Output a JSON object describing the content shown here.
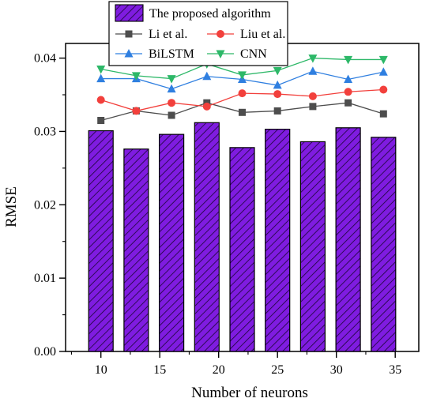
{
  "chart_data": {
    "type": "bar",
    "xlabel": "Number of neurons",
    "ylabel": "RMSE",
    "xlim": [
      7,
      37
    ],
    "ylim": [
      0,
      0.042
    ],
    "x_ticks": [
      10,
      15,
      20,
      25,
      30,
      35
    ],
    "y_ticks": [
      0.0,
      0.01,
      0.02,
      0.03,
      0.04
    ],
    "x_tick_labels": [
      "10",
      "15",
      "20",
      "25",
      "30",
      "35"
    ],
    "y_tick_labels": [
      "0.00",
      "0.01",
      "0.02",
      "0.03",
      "0.04"
    ],
    "x": [
      10,
      13,
      16,
      19,
      22,
      25,
      28,
      31,
      34
    ],
    "legend_position": "top",
    "series": [
      {
        "name": "The proposed algorithm",
        "type": "bar",
        "color": "#7F1CE0",
        "fill": "hatched",
        "values": [
          0.0301,
          0.0276,
          0.0296,
          0.0312,
          0.0278,
          0.0303,
          0.0286,
          0.0305,
          0.0292
        ]
      },
      {
        "name": "Li et al.",
        "type": "line",
        "marker": "square",
        "color": "#4D4D4D",
        "values": [
          0.0315,
          0.0328,
          0.0322,
          0.0339,
          0.0326,
          0.0328,
          0.0334,
          0.0339,
          0.0324
        ]
      },
      {
        "name": "Liu et al.",
        "type": "line",
        "marker": "circle",
        "color": "#F2403C",
        "values": [
          0.0343,
          0.0328,
          0.0339,
          0.0334,
          0.0352,
          0.0351,
          0.0348,
          0.0354,
          0.0357
        ]
      },
      {
        "name": "BiLSTM",
        "type": "line",
        "marker": "triangle-up",
        "color": "#2F7FE0",
        "values": [
          0.0372,
          0.0372,
          0.0358,
          0.0375,
          0.0371,
          0.0363,
          0.0382,
          0.0371,
          0.0381
        ]
      },
      {
        "name": "CNN",
        "type": "line",
        "marker": "triangle-down",
        "color": "#2DB868",
        "values": [
          0.0385,
          0.0376,
          0.0372,
          0.0392,
          0.0377,
          0.0383,
          0.04,
          0.0398,
          0.0398
        ]
      }
    ]
  }
}
